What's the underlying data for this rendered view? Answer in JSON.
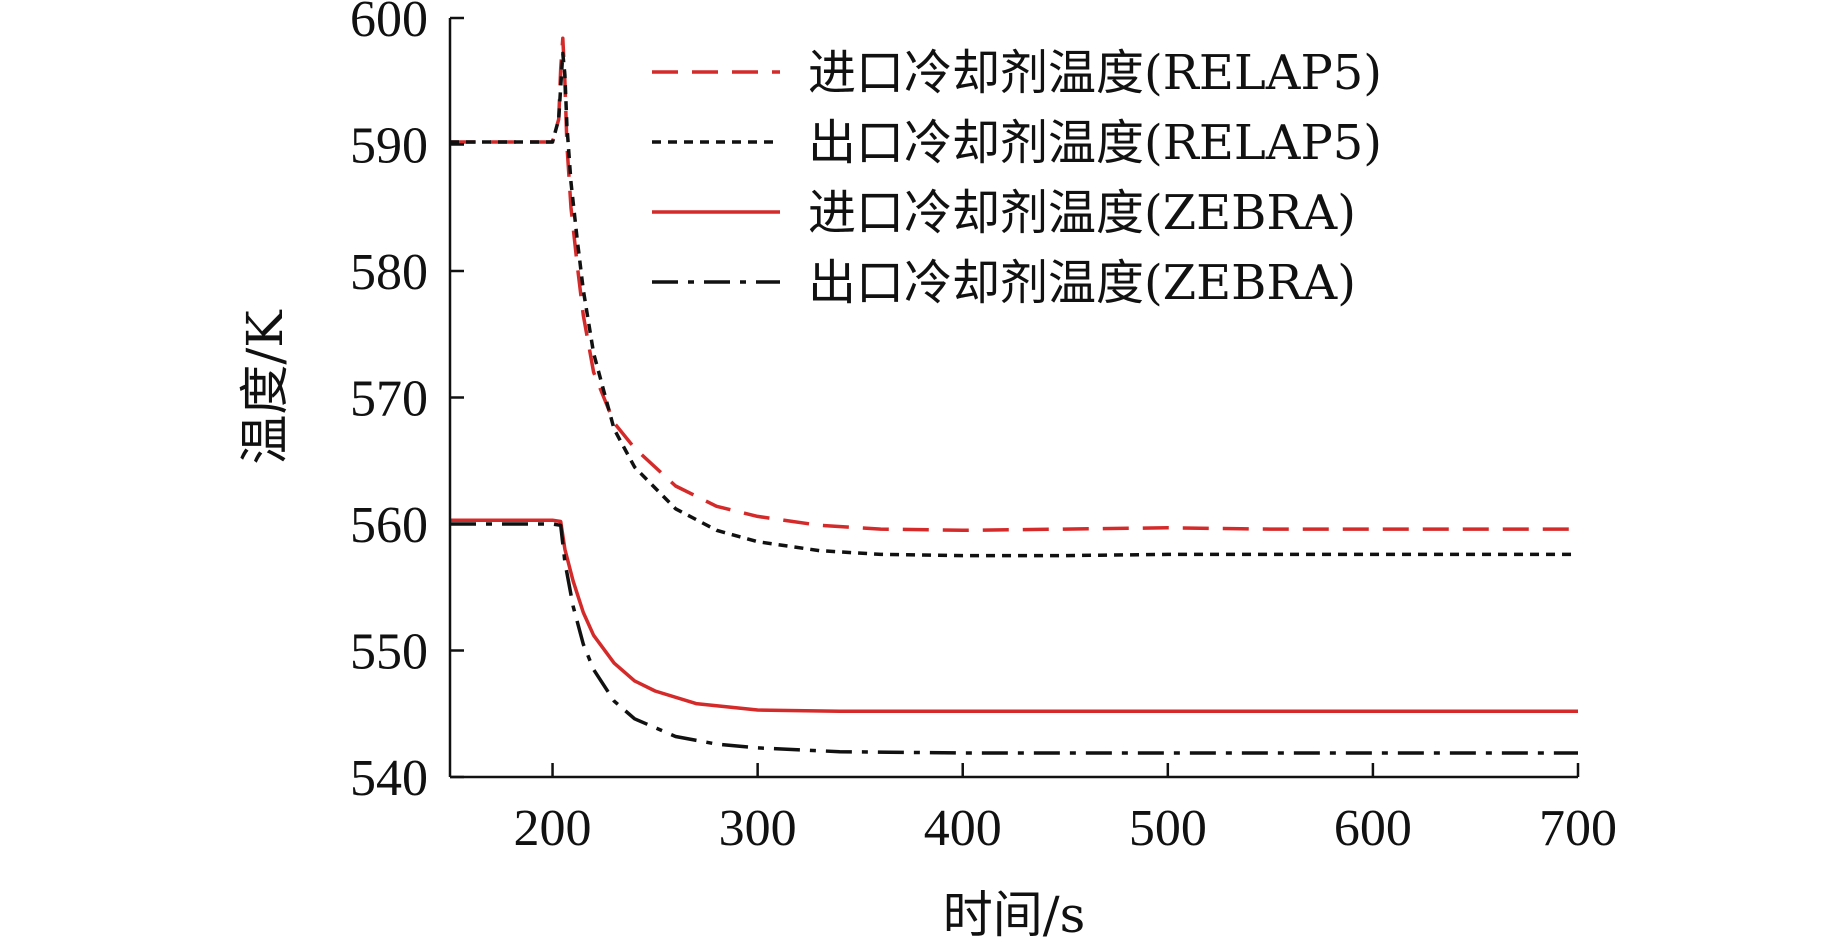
{
  "chart_data": {
    "type": "line",
    "xlabel": "时间/s",
    "ylabel": "温度/K",
    "xlim": [
      150,
      700
    ],
    "ylim": [
      540,
      600
    ],
    "xticks": [
      200,
      300,
      400,
      500,
      600,
      700
    ],
    "yticks": [
      540,
      550,
      560,
      570,
      580,
      590,
      600
    ],
    "legend_position": "top-right",
    "grid": false,
    "series": [
      {
        "name": "进口冷却剂温度(RELAP5)",
        "color": "#d42a2a",
        "dash": "26,14",
        "x": [
          150,
          200,
          203,
          204,
          205,
          206,
          207,
          209,
          212,
          215,
          220,
          230,
          240,
          260,
          280,
          300,
          330,
          360,
          400,
          450,
          500,
          550,
          600,
          650,
          700
        ],
        "y": [
          590.2,
          590.2,
          592,
          596,
          598.4,
          595,
          590,
          585,
          580.5,
          576.5,
          572,
          568,
          566,
          563,
          561.4,
          560.6,
          559.9,
          559.6,
          559.5,
          559.6,
          559.7,
          559.6,
          559.6,
          559.6,
          559.6
        ]
      },
      {
        "name": "出口冷却剂温度(RELAP5)",
        "color": "#111111",
        "dash": "9,7",
        "x": [
          150,
          200,
          203,
          205,
          206,
          207,
          209,
          212,
          215,
          220,
          230,
          240,
          260,
          280,
          300,
          330,
          360,
          400,
          450,
          500,
          550,
          600,
          650,
          700
        ],
        "y": [
          590.2,
          590.2,
          592,
          597.2,
          595.5,
          591.5,
          587,
          582.5,
          578.5,
          573.5,
          567.5,
          564.5,
          561.2,
          559.5,
          558.6,
          557.9,
          557.6,
          557.5,
          557.5,
          557.6,
          557.6,
          557.6,
          557.6,
          557.6
        ]
      },
      {
        "name": "进口冷却剂温度(ZEBRA)",
        "color": "#d42a2a",
        "dash": "",
        "x": [
          150,
          200,
          204,
          206,
          210,
          215,
          220,
          230,
          240,
          250,
          270,
          300,
          340,
          400,
          500,
          600,
          700
        ],
        "y": [
          560.3,
          560.3,
          560.2,
          558,
          555.5,
          553,
          551.2,
          549,
          547.6,
          546.8,
          545.8,
          545.3,
          545.2,
          545.2,
          545.2,
          545.2,
          545.2
        ]
      },
      {
        "name": "出口冷却剂温度(ZEBRA)",
        "color": "#111111",
        "dash": "26,10,6,10",
        "x": [
          150,
          200,
          204,
          206,
          210,
          215,
          220,
          230,
          240,
          260,
          280,
          300,
          340,
          400,
          500,
          600,
          700
        ],
        "y": [
          560.0,
          560.0,
          559.9,
          557,
          553.5,
          550.5,
          548.5,
          546,
          544.6,
          543.2,
          542.6,
          542.3,
          542.0,
          541.9,
          541.9,
          541.9,
          541.9
        ]
      }
    ]
  }
}
